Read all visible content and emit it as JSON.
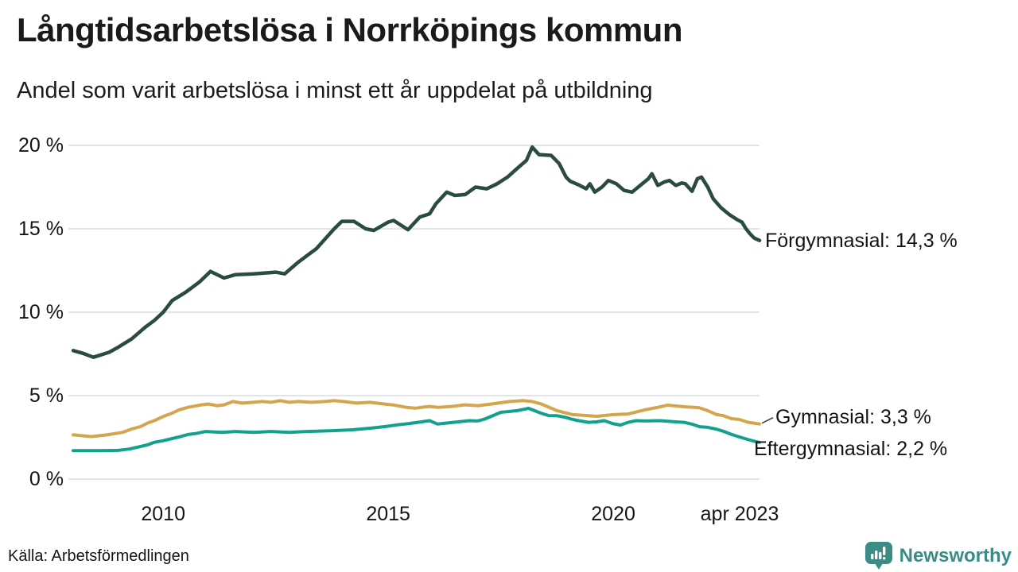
{
  "header": {
    "title": "Långtidsarbetslösa i Norrköpings kommun",
    "subtitle": "Andel som varit arbetslösa i minst ett år uppdelat på utbildning"
  },
  "footer": {
    "source": "Källa: Arbetsförmedlingen",
    "brand": "Newsworthy"
  },
  "colors": {
    "forgymnasial": "#2a4b42",
    "gymnasial": "#d5a54e",
    "eftergymnasial": "#12a18c",
    "brand_teal": "#3a8c84",
    "gridline": "#e4e4e6",
    "text": "#141414"
  },
  "chart_data": {
    "type": "line",
    "title": "Långtidsarbetslösa i Norrköpings kommun",
    "subtitle": "Andel som varit arbetslösa i minst ett år uppdelat på utbildning",
    "xlabel": "",
    "ylabel": "",
    "xlim": [
      2008.0,
      2023.25
    ],
    "ylim": [
      0,
      20
    ],
    "grid": "horizontal",
    "legend_position": "right-end-labels",
    "y_ticks": [
      {
        "y": 20,
        "label": "20 %"
      },
      {
        "y": 15,
        "label": "15 %"
      },
      {
        "y": 10,
        "label": "10 %"
      },
      {
        "y": 5,
        "label": "5 %"
      },
      {
        "y": 0,
        "label": "0 %"
      }
    ],
    "x_ticks": [
      {
        "x": 2010,
        "label": "2010"
      },
      {
        "x": 2015,
        "label": "2015"
      },
      {
        "x": 2020,
        "label": "2020"
      },
      {
        "x": 2023.25,
        "label": "apr 2023"
      }
    ],
    "series": [
      {
        "name": "Förgymnasial",
        "color": "#2a4b42",
        "end_value": "14,3 %",
        "end_label": "Förgymnasial: 14,3 %",
        "points": [
          [
            2008.0,
            7.7
          ],
          [
            2008.2,
            7.55
          ],
          [
            2008.45,
            7.3
          ],
          [
            2008.8,
            7.6
          ],
          [
            2009.0,
            7.9
          ],
          [
            2009.3,
            8.4
          ],
          [
            2009.6,
            9.1
          ],
          [
            2009.8,
            9.5
          ],
          [
            2010.0,
            10.0
          ],
          [
            2010.2,
            10.7
          ],
          [
            2010.5,
            11.2
          ],
          [
            2010.8,
            11.8
          ],
          [
            2011.05,
            12.45
          ],
          [
            2011.35,
            12.05
          ],
          [
            2011.6,
            12.25
          ],
          [
            2012.0,
            12.3
          ],
          [
            2012.5,
            12.4
          ],
          [
            2012.7,
            12.3
          ],
          [
            2013.0,
            13.0
          ],
          [
            2013.15,
            13.3
          ],
          [
            2013.4,
            13.8
          ],
          [
            2013.6,
            14.4
          ],
          [
            2013.8,
            15.0
          ],
          [
            2013.97,
            15.45
          ],
          [
            2014.24,
            15.45
          ],
          [
            2014.5,
            15.0
          ],
          [
            2014.68,
            14.9
          ],
          [
            2015.0,
            15.4
          ],
          [
            2015.12,
            15.5
          ],
          [
            2015.44,
            14.95
          ],
          [
            2015.7,
            15.7
          ],
          [
            2015.92,
            15.9
          ],
          [
            2016.06,
            16.5
          ],
          [
            2016.3,
            17.2
          ],
          [
            2016.48,
            17.0
          ],
          [
            2016.71,
            17.05
          ],
          [
            2016.94,
            17.5
          ],
          [
            2017.19,
            17.4
          ],
          [
            2017.42,
            17.7
          ],
          [
            2017.65,
            18.1
          ],
          [
            2017.9,
            18.7
          ],
          [
            2018.07,
            19.1
          ],
          [
            2018.2,
            19.9
          ],
          [
            2018.35,
            19.45
          ],
          [
            2018.62,
            19.4
          ],
          [
            2018.8,
            18.9
          ],
          [
            2018.95,
            18.1
          ],
          [
            2019.04,
            17.85
          ],
          [
            2019.22,
            17.65
          ],
          [
            2019.4,
            17.4
          ],
          [
            2019.48,
            17.7
          ],
          [
            2019.59,
            17.2
          ],
          [
            2019.75,
            17.5
          ],
          [
            2019.89,
            17.9
          ],
          [
            2020.07,
            17.7
          ],
          [
            2020.24,
            17.3
          ],
          [
            2020.42,
            17.2
          ],
          [
            2020.6,
            17.6
          ],
          [
            2020.78,
            18.0
          ],
          [
            2020.86,
            18.3
          ],
          [
            2020.99,
            17.6
          ],
          [
            2021.13,
            17.8
          ],
          [
            2021.25,
            17.9
          ],
          [
            2021.39,
            17.6
          ],
          [
            2021.52,
            17.75
          ],
          [
            2021.6,
            17.7
          ],
          [
            2021.75,
            17.25
          ],
          [
            2021.87,
            18.0
          ],
          [
            2021.96,
            18.1
          ],
          [
            2022.1,
            17.5
          ],
          [
            2022.22,
            16.8
          ],
          [
            2022.4,
            16.25
          ],
          [
            2022.58,
            15.85
          ],
          [
            2022.75,
            15.55
          ],
          [
            2022.86,
            15.4
          ],
          [
            2022.95,
            15.0
          ],
          [
            2023.04,
            14.7
          ],
          [
            2023.13,
            14.45
          ],
          [
            2023.25,
            14.3
          ]
        ]
      },
      {
        "name": "Gymnasial",
        "color": "#d5a54e",
        "end_value": "3,3 %",
        "end_label": "Gymnasial:  3,3 %",
        "leader": true,
        "points": [
          [
            2008.0,
            2.65
          ],
          [
            2008.4,
            2.55
          ],
          [
            2008.75,
            2.65
          ],
          [
            2009.1,
            2.8
          ],
          [
            2009.3,
            3.0
          ],
          [
            2009.5,
            3.15
          ],
          [
            2009.65,
            3.35
          ],
          [
            2009.8,
            3.5
          ],
          [
            2010.0,
            3.75
          ],
          [
            2010.2,
            3.95
          ],
          [
            2010.35,
            4.15
          ],
          [
            2010.55,
            4.3
          ],
          [
            2010.85,
            4.45
          ],
          [
            2011.0,
            4.5
          ],
          [
            2011.2,
            4.4
          ],
          [
            2011.35,
            4.45
          ],
          [
            2011.55,
            4.65
          ],
          [
            2011.75,
            4.55
          ],
          [
            2012.0,
            4.6
          ],
          [
            2012.2,
            4.65
          ],
          [
            2012.4,
            4.6
          ],
          [
            2012.6,
            4.7
          ],
          [
            2012.8,
            4.6
          ],
          [
            2013.0,
            4.65
          ],
          [
            2013.3,
            4.6
          ],
          [
            2013.6,
            4.65
          ],
          [
            2013.8,
            4.7
          ],
          [
            2014.0,
            4.65
          ],
          [
            2014.3,
            4.55
          ],
          [
            2014.6,
            4.6
          ],
          [
            2014.9,
            4.5
          ],
          [
            2015.1,
            4.45
          ],
          [
            2015.4,
            4.3
          ],
          [
            2015.6,
            4.25
          ],
          [
            2015.9,
            4.35
          ],
          [
            2016.1,
            4.3
          ],
          [
            2016.4,
            4.35
          ],
          [
            2016.7,
            4.45
          ],
          [
            2017.0,
            4.4
          ],
          [
            2017.3,
            4.5
          ],
          [
            2017.7,
            4.65
          ],
          [
            2018.0,
            4.7
          ],
          [
            2018.2,
            4.65
          ],
          [
            2018.4,
            4.5
          ],
          [
            2018.75,
            4.1
          ],
          [
            2019.1,
            3.86
          ],
          [
            2019.45,
            3.8
          ],
          [
            2019.63,
            3.76
          ],
          [
            2020.0,
            3.86
          ],
          [
            2020.33,
            3.9
          ],
          [
            2020.7,
            4.15
          ],
          [
            2021.05,
            4.33
          ],
          [
            2021.2,
            4.43
          ],
          [
            2021.4,
            4.38
          ],
          [
            2021.6,
            4.33
          ],
          [
            2021.9,
            4.28
          ],
          [
            2022.1,
            4.1
          ],
          [
            2022.3,
            3.86
          ],
          [
            2022.45,
            3.8
          ],
          [
            2022.63,
            3.62
          ],
          [
            2022.8,
            3.57
          ],
          [
            2023.0,
            3.4
          ],
          [
            2023.25,
            3.3
          ]
        ]
      },
      {
        "name": "Eftergymnasial",
        "color": "#12a18c",
        "end_value": "2,2 %",
        "end_label": "Eftergymnasial:  2,2 %",
        "points": [
          [
            2008.0,
            1.7
          ],
          [
            2008.5,
            1.7
          ],
          [
            2009.0,
            1.72
          ],
          [
            2009.25,
            1.8
          ],
          [
            2009.65,
            2.05
          ],
          [
            2009.8,
            2.2
          ],
          [
            2010.0,
            2.3
          ],
          [
            2010.2,
            2.43
          ],
          [
            2010.35,
            2.52
          ],
          [
            2010.55,
            2.67
          ],
          [
            2010.7,
            2.72
          ],
          [
            2010.95,
            2.85
          ],
          [
            2011.3,
            2.8
          ],
          [
            2011.6,
            2.85
          ],
          [
            2012.0,
            2.8
          ],
          [
            2012.4,
            2.85
          ],
          [
            2012.8,
            2.8
          ],
          [
            2013.2,
            2.85
          ],
          [
            2013.76,
            2.9
          ],
          [
            2014.2,
            2.95
          ],
          [
            2014.6,
            3.05
          ],
          [
            2014.94,
            3.15
          ],
          [
            2015.2,
            3.25
          ],
          [
            2015.47,
            3.33
          ],
          [
            2015.92,
            3.5
          ],
          [
            2016.09,
            3.3
          ],
          [
            2016.45,
            3.4
          ],
          [
            2016.8,
            3.5
          ],
          [
            2016.98,
            3.48
          ],
          [
            2017.15,
            3.6
          ],
          [
            2017.5,
            4.0
          ],
          [
            2017.68,
            4.05
          ],
          [
            2017.86,
            4.1
          ],
          [
            2018.12,
            4.24
          ],
          [
            2018.39,
            3.95
          ],
          [
            2018.57,
            3.8
          ],
          [
            2018.74,
            3.8
          ],
          [
            2018.92,
            3.71
          ],
          [
            2019.1,
            3.57
          ],
          [
            2019.27,
            3.48
          ],
          [
            2019.45,
            3.4
          ],
          [
            2019.63,
            3.43
          ],
          [
            2019.8,
            3.5
          ],
          [
            2019.98,
            3.33
          ],
          [
            2020.16,
            3.24
          ],
          [
            2020.33,
            3.4
          ],
          [
            2020.51,
            3.5
          ],
          [
            2020.69,
            3.48
          ],
          [
            2021.04,
            3.5
          ],
          [
            2021.39,
            3.43
          ],
          [
            2021.57,
            3.4
          ],
          [
            2021.75,
            3.29
          ],
          [
            2021.92,
            3.14
          ],
          [
            2022.1,
            3.1
          ],
          [
            2022.28,
            3.0
          ],
          [
            2022.45,
            2.86
          ],
          [
            2022.63,
            2.67
          ],
          [
            2022.81,
            2.52
          ],
          [
            2022.98,
            2.38
          ],
          [
            2023.16,
            2.25
          ],
          [
            2023.25,
            2.2
          ]
        ]
      }
    ]
  }
}
